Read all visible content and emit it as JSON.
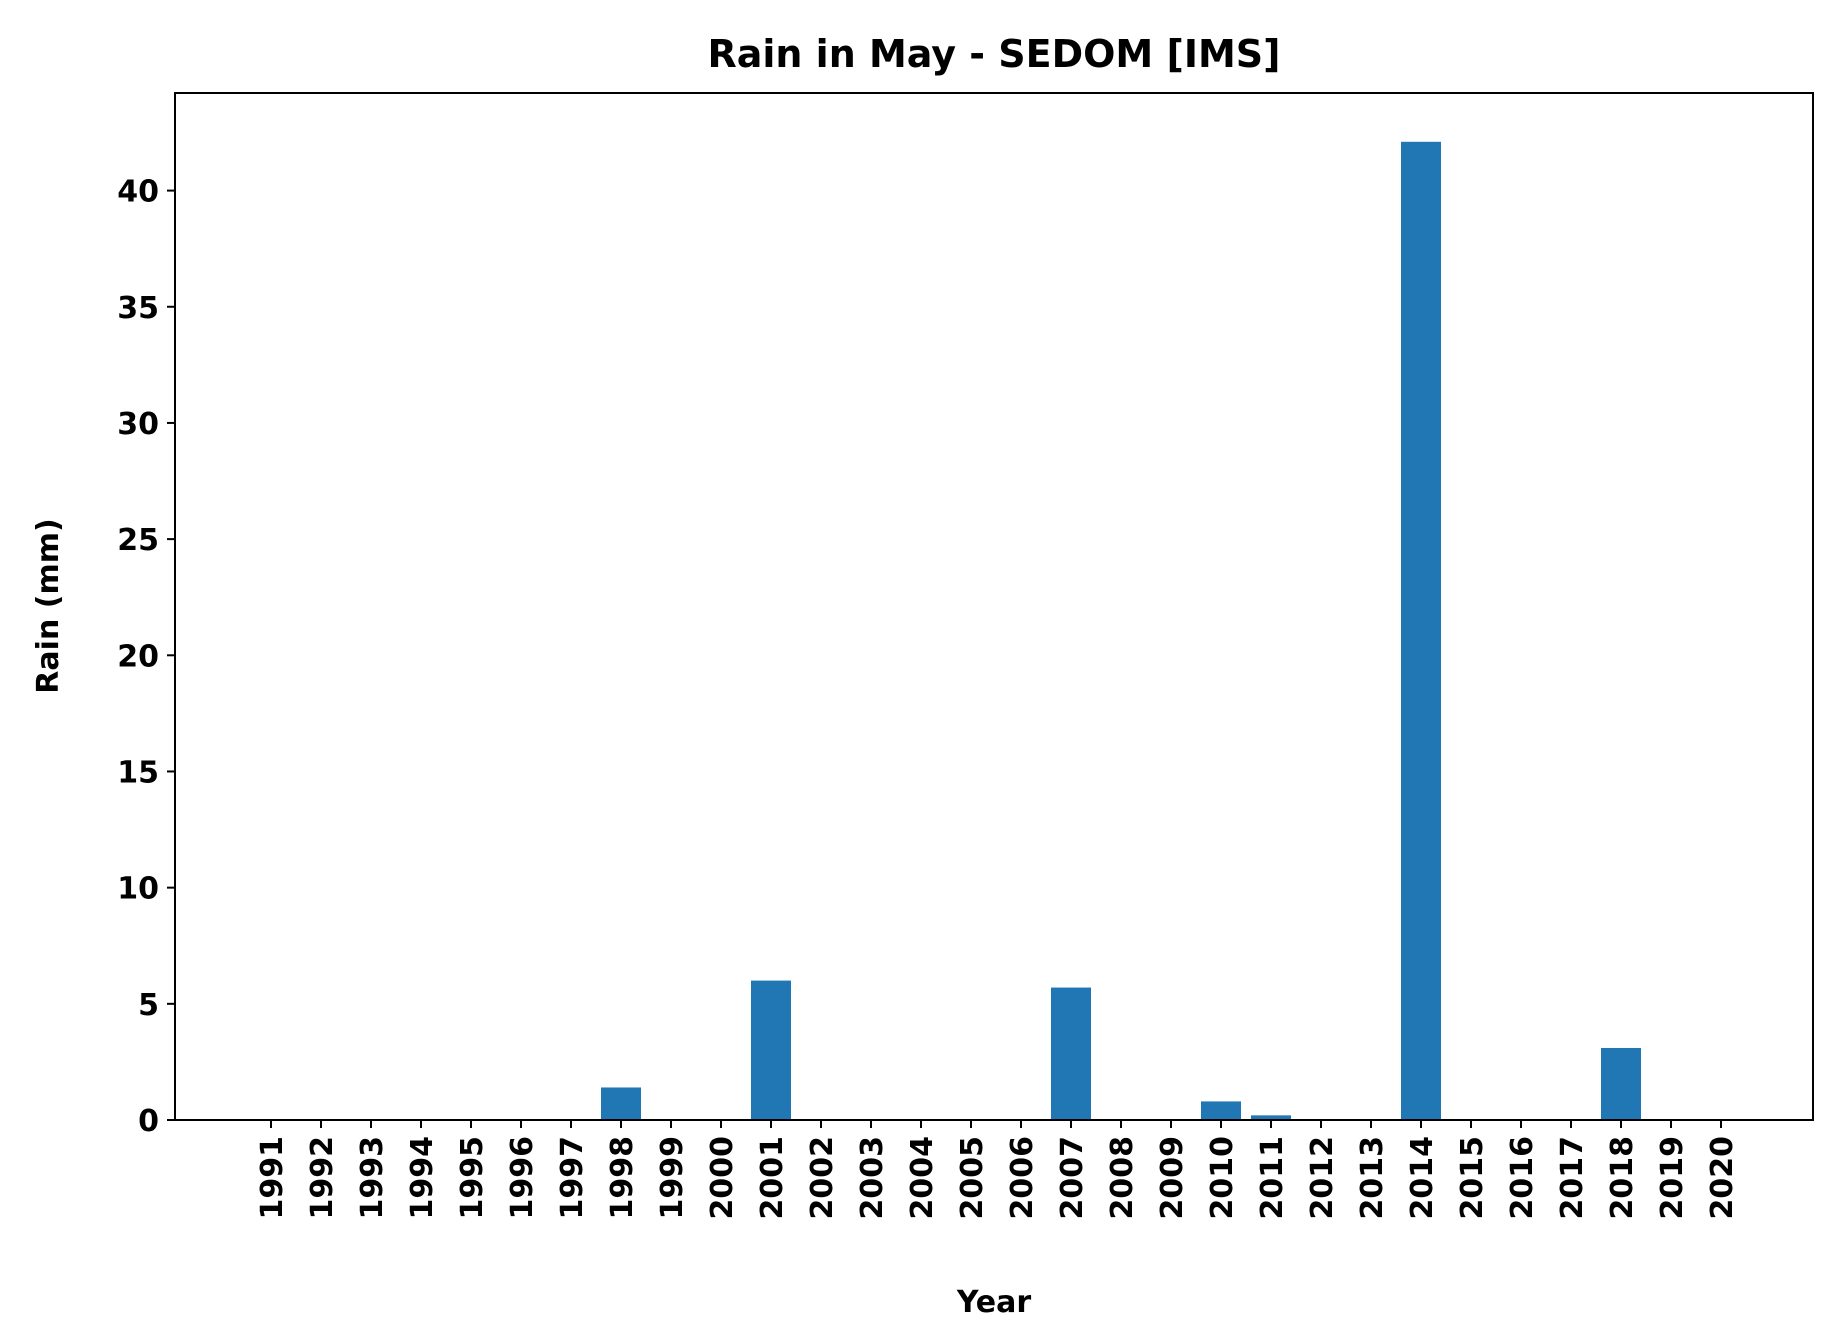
{
  "chart_data": {
    "type": "bar",
    "title": "Rain in May - SEDOM [IMS]",
    "xlabel": "Year",
    "ylabel": "Rain (mm)",
    "categories": [
      "1991",
      "1992",
      "1993",
      "1994",
      "1995",
      "1996",
      "1997",
      "1998",
      "1999",
      "2000",
      "2001",
      "2002",
      "2003",
      "2004",
      "2005",
      "2006",
      "2007",
      "2008",
      "2009",
      "2010",
      "2011",
      "2012",
      "2013",
      "2014",
      "2015",
      "2016",
      "2017",
      "2018",
      "2019",
      "2020"
    ],
    "values": [
      0,
      0,
      0,
      0,
      0,
      0,
      0,
      1.4,
      0,
      0,
      6.0,
      0,
      0,
      0,
      0,
      0,
      5.7,
      0,
      0,
      0.8,
      0.2,
      0,
      0,
      42.1,
      0,
      0,
      0,
      3.1,
      0,
      0
    ],
    "yticks": [
      0,
      5,
      10,
      15,
      20,
      25,
      30,
      35,
      40
    ],
    "ylim": [
      0,
      44.2
    ],
    "grid": false,
    "colors": {
      "bar": "#2077b4",
      "axis": "#000000"
    }
  }
}
